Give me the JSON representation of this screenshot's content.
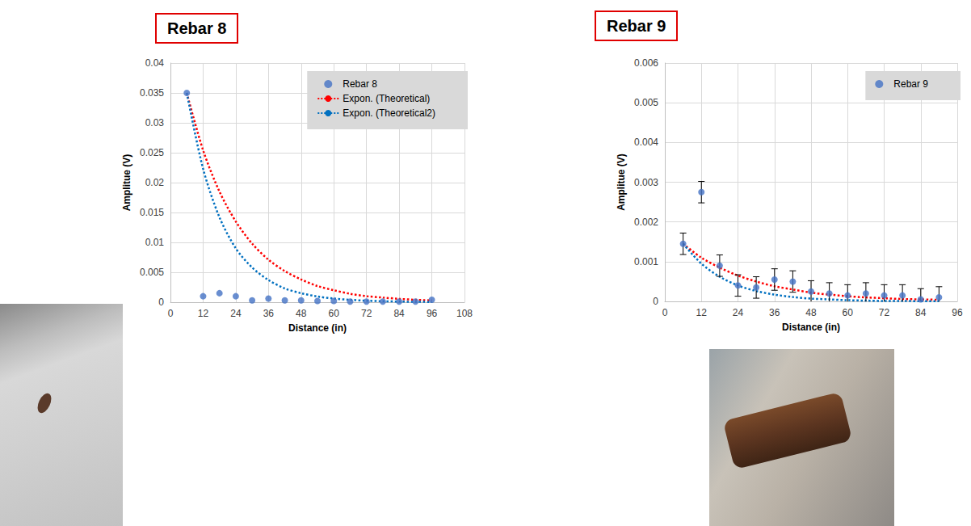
{
  "chart_data": [
    {
      "type": "scatter",
      "title": "Rebar 8",
      "x_label": "Distance (in)",
      "y_label": "Amplitue (V)",
      "xlim": [
        0,
        108
      ],
      "xticks": [
        0,
        12,
        24,
        36,
        48,
        60,
        72,
        84,
        96,
        108
      ],
      "ylim": [
        0,
        0.04
      ],
      "yticks": [
        0,
        0.005,
        0.01,
        0.015,
        0.02,
        0.025,
        0.03,
        0.035,
        0.04
      ],
      "grid": true,
      "legend": "upper right",
      "series": [
        {
          "name": "Rebar 8",
          "type": "scatter",
          "marker": "circle",
          "color": "#4472c4",
          "x": [
            6,
            12,
            18,
            24,
            30,
            36,
            42,
            48,
            54,
            60,
            66,
            72,
            78,
            84,
            90,
            96
          ],
          "values": [
            0.035,
            0.001,
            0.0015,
            0.001,
            0.0003,
            0.0006,
            0.0003,
            0.0003,
            0.0002,
            0.0002,
            0.0001,
            0.0001,
            0.0001,
            0.0001,
            0.0001,
            0.0004
          ]
        },
        {
          "name": "Expon. (Theoretical)",
          "type": "line",
          "line_style": "dotted",
          "color": "#ff0000",
          "x": [
            6,
            12,
            18,
            24,
            30,
            36,
            42,
            48,
            54,
            60,
            66,
            72,
            78,
            84,
            90,
            96
          ],
          "values": [
            0.035,
            0.0254,
            0.0185,
            0.0135,
            0.0098,
            0.0071,
            0.0052,
            0.0038,
            0.0027,
            0.002,
            0.0014,
            0.001,
            0.00077,
            0.00056,
            0.0004,
            0.0003
          ]
        },
        {
          "name": "Expon. (Theoretical2)",
          "type": "line",
          "line_style": "dotted",
          "color": "#0070c0",
          "x": [
            6,
            12,
            18,
            24,
            30,
            36,
            42,
            48,
            54,
            60,
            66,
            72,
            78,
            84,
            90,
            96
          ],
          "values": [
            0.035,
            0.0223,
            0.0142,
            0.009,
            0.0058,
            0.0037,
            0.0023,
            0.0015,
            0.00095,
            0.0006,
            0.0004,
            0.00025,
            0.00016,
            0.0001,
            7e-05,
            4e-05
          ]
        }
      ]
    },
    {
      "type": "scatter",
      "title": "Rebar 9",
      "x_label": "Distance (in)",
      "y_label": "Amplitue (V)",
      "xlim": [
        0,
        96
      ],
      "xticks": [
        0,
        12,
        24,
        36,
        48,
        60,
        72,
        84,
        96
      ],
      "ylim": [
        0,
        0.006
      ],
      "yticks": [
        0,
        0.001,
        0.002,
        0.003,
        0.004,
        0.005,
        0.006
      ],
      "grid": true,
      "legend": "upper right",
      "series": [
        {
          "name": "Rebar 9",
          "type": "scatter",
          "marker": "circle",
          "color": "#4472c4",
          "x": [
            6,
            12,
            18,
            24,
            30,
            36,
            42,
            48,
            54,
            60,
            66,
            72,
            78,
            84,
            90
          ],
          "values": [
            0.00145,
            0.00275,
            0.0009,
            0.0004,
            0.00035,
            0.00055,
            0.0005,
            0.00025,
            0.0002,
            0.00015,
            0.0002,
            0.00015,
            0.00015,
            5e-05,
            0.0001
          ],
          "errors": [
            0.00027,
            0.00027,
            0.00027,
            0.00027,
            0.00027,
            0.00027,
            0.00027,
            0.00027,
            0.00027,
            0.00027,
            0.00027,
            0.00027,
            0.00027,
            0.00027,
            0.00027
          ]
        },
        {
          "type": "line",
          "line_style": "dotted",
          "color": "#ff0000",
          "x": [
            6,
            12,
            18,
            24,
            30,
            36,
            42,
            48,
            54,
            60,
            66,
            72,
            78,
            84,
            90
          ],
          "values": [
            0.00145,
            0.0011,
            0.00085,
            0.00065,
            0.0005,
            0.00038,
            0.0003,
            0.00022,
            0.00017,
            0.00013,
            0.0001,
            8e-05,
            6e-05,
            5e-05,
            4e-05
          ]
        },
        {
          "type": "line",
          "line_style": "dotted",
          "color": "#0070c0",
          "x": [
            6,
            12,
            18,
            24,
            30,
            36,
            42,
            48,
            54,
            60,
            66,
            72,
            78,
            84,
            90
          ],
          "values": [
            0.00145,
            0.00095,
            0.00062,
            0.0004,
            0.00026,
            0.00017,
            0.00011,
            7e-05,
            5e-05,
            3e-05,
            2e-05,
            1e-05,
            1e-05,
            5e-06,
            3e-06
          ]
        }
      ]
    }
  ]
}
